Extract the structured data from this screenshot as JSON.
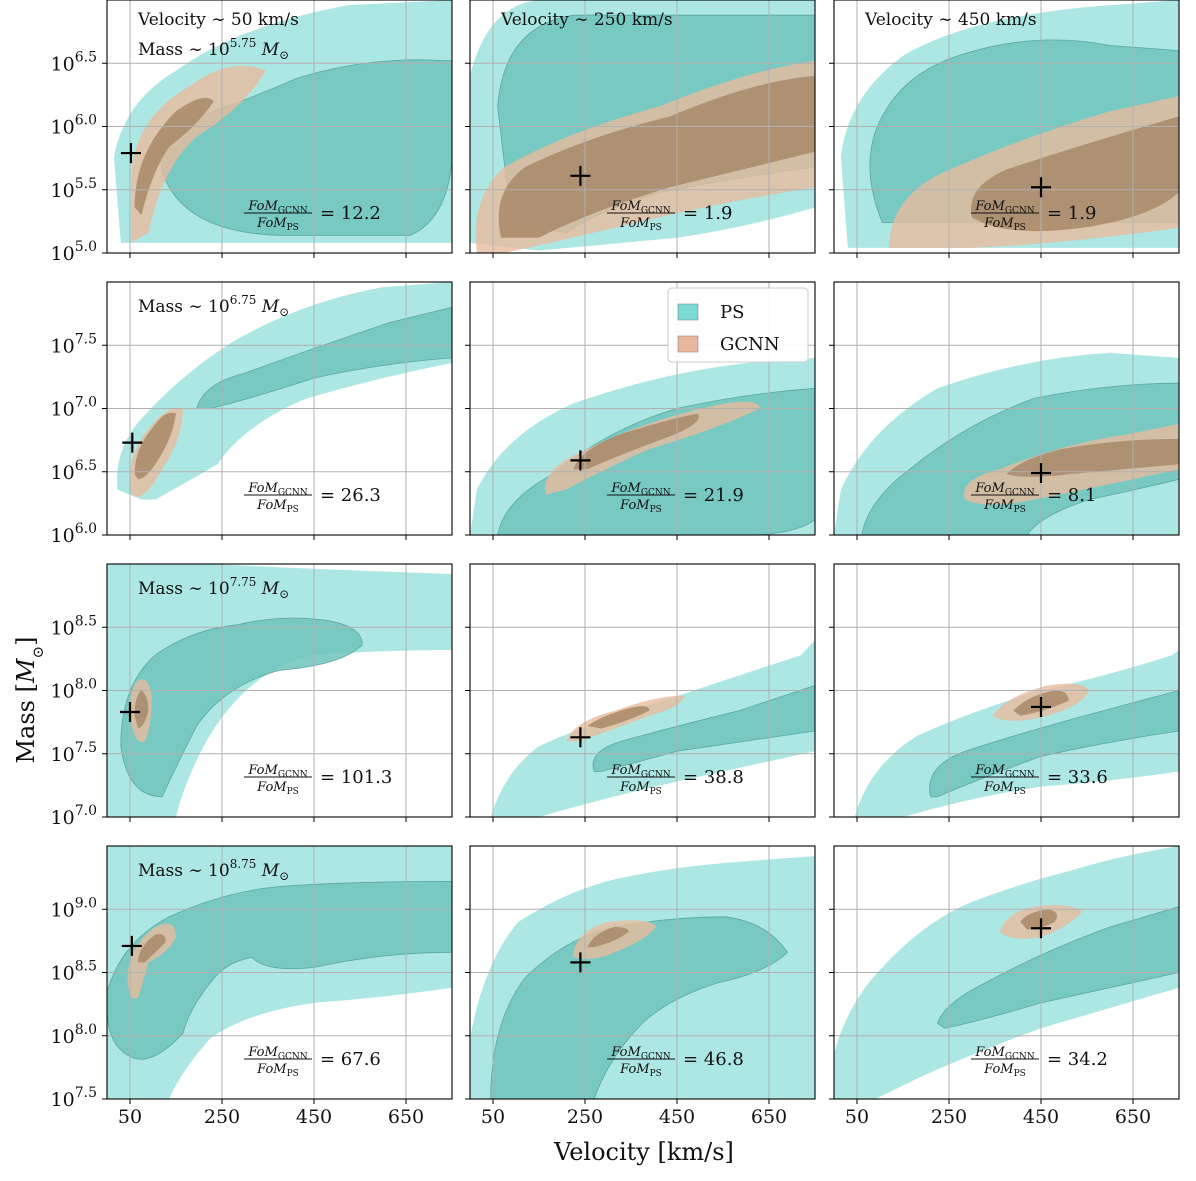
{
  "chart_data": {
    "type": "contour",
    "xlabel": "Velocity [km/s]",
    "ylabel": "Mass [M⊙]",
    "xticks": [
      50,
      250,
      450,
      650
    ],
    "xlim": [
      0,
      750
    ],
    "grid": true,
    "legend": {
      "placement": "top-right of row 2, column 2",
      "entries": [
        {
          "name": "PS",
          "color": "#4ecdc4"
        },
        {
          "name": "GCNN",
          "color": "#e0a07e"
        }
      ]
    },
    "colors": {
      "ps_outer": "#a9e6e1",
      "ps_inner": "#6fc3bc",
      "gcnn_outer": "#e9bb9e",
      "gcnn_inner": "#a88a68",
      "marker": "#000000"
    },
    "columns": [
      {
        "velocity_label": "Velocity ∼ 50 km/s"
      },
      {
        "velocity_label": "Velocity ∼ 250 km/s"
      },
      {
        "velocity_label": "Velocity ∼ 450 km/s"
      }
    ],
    "rows": [
      {
        "mass_label": "Mass ∼ 10^5.75 M⊙",
        "ylim": [
          5.0,
          7.0
        ],
        "yticks": [
          {
            "v": 5.0,
            "e": "5.0"
          },
          {
            "v": 5.5,
            "e": "5.5"
          },
          {
            "v": 6.0,
            "e": "6.0"
          },
          {
            "v": 6.5,
            "e": "6.5"
          }
        ],
        "truth_mass": 5.75,
        "panels": [
          {
            "truth": [
              52,
              5.79
            ],
            "fom": "12.2"
          },
          {
            "truth": [
              240,
              5.61
            ],
            "fom": "1.9"
          },
          {
            "truth": [
              450,
              5.52
            ],
            "fom": "1.9"
          }
        ]
      },
      {
        "mass_label": "Mass ∼ 10^6.75 M⊙",
        "ylim": [
          6.0,
          8.0
        ],
        "yticks": [
          {
            "v": 6.0,
            "e": "6.0"
          },
          {
            "v": 6.5,
            "e": "6.5"
          },
          {
            "v": 7.0,
            "e": "7.0"
          },
          {
            "v": 7.5,
            "e": "7.5"
          }
        ],
        "truth_mass": 6.75,
        "panels": [
          {
            "truth": [
              55,
              6.73
            ],
            "fom": "26.3"
          },
          {
            "truth": [
              240,
              6.59
            ],
            "fom": "21.9"
          },
          {
            "truth": [
              450,
              6.49
            ],
            "fom": "8.1"
          }
        ]
      },
      {
        "mass_label": "Mass ∼ 10^7.75 M⊙",
        "ylim": [
          7.0,
          9.0
        ],
        "yticks": [
          {
            "v": 7.0,
            "e": "7.0"
          },
          {
            "v": 7.5,
            "e": "7.5"
          },
          {
            "v": 8.0,
            "e": "8.0"
          },
          {
            "v": 8.5,
            "e": "8.5"
          }
        ],
        "truth_mass": 7.75,
        "panels": [
          {
            "truth": [
              50,
              7.83
            ],
            "fom": "101.3"
          },
          {
            "truth": [
              240,
              7.63
            ],
            "fom": "38.8"
          },
          {
            "truth": [
              450,
              7.87
            ],
            "fom": "33.6"
          }
        ]
      },
      {
        "mass_label": "Mass ∼ 10^8.75 M⊙",
        "ylim": [
          7.5,
          9.5
        ],
        "yticks": [
          {
            "v": 7.5,
            "e": "7.5"
          },
          {
            "v": 8.0,
            "e": "8.0"
          },
          {
            "v": 8.5,
            "e": "8.5"
          },
          {
            "v": 9.0,
            "e": "9.0"
          }
        ],
        "truth_mass": 8.75,
        "panels": [
          {
            "truth": [
              54,
              8.71
            ],
            "fom": "67.6"
          },
          {
            "truth": [
              240,
              8.58
            ],
            "fom": "46.8"
          },
          {
            "truth": [
              450,
              8.85
            ],
            "fom": "34.2"
          }
        ]
      }
    ],
    "fom_label": "FoM_GCNN / FoM_PS",
    "fom_num": "FoM",
    "fom_num_sub": "GCNN",
    "fom_den_sub": "PS"
  }
}
